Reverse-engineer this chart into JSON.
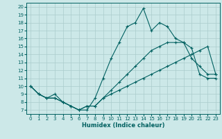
{
  "xlabel": "Humidex (Indice chaleur)",
  "bg_color": "#cce8e8",
  "line_color": "#006060",
  "grid_color": "#aacccc",
  "line1_x": [
    0,
    1,
    2,
    3,
    4,
    5,
    6,
    7,
    8,
    9,
    10,
    11,
    12,
    13,
    14,
    15,
    16,
    17,
    18,
    19,
    20,
    21,
    22,
    23
  ],
  "line1_y": [
    10,
    9,
    8.5,
    9,
    8,
    7.5,
    7,
    7,
    8.5,
    11,
    13.5,
    15.5,
    17.5,
    18.0,
    19.8,
    17.0,
    18.0,
    17.5,
    16.0,
    15.5,
    13.5,
    12.5,
    11.5,
    11.5
  ],
  "line2_x": [
    0,
    1,
    2,
    3,
    4,
    5,
    6,
    7,
    8,
    9,
    10,
    11,
    12,
    13,
    14,
    15,
    16,
    17,
    18,
    19,
    20,
    21,
    22,
    23
  ],
  "line2_y": [
    10,
    9,
    8.5,
    8.5,
    8,
    7.5,
    7,
    7.5,
    7.5,
    8.5,
    9.5,
    10.5,
    11.5,
    12.5,
    13.5,
    14.5,
    15.0,
    15.5,
    15.5,
    15.5,
    14.8,
    11.5,
    11.0,
    11.0
  ],
  "line3_x": [
    0,
    1,
    2,
    3,
    4,
    5,
    6,
    7,
    8,
    9,
    10,
    11,
    12,
    13,
    14,
    15,
    16,
    17,
    18,
    19,
    20,
    21,
    22,
    23
  ],
  "line3_y": [
    10,
    9,
    8.5,
    8.5,
    8,
    7.5,
    7,
    7.5,
    7.5,
    8.5,
    9.0,
    9.5,
    10.0,
    10.5,
    11.0,
    11.5,
    12.0,
    12.5,
    13.0,
    13.5,
    14.0,
    14.5,
    15.0,
    11.5
  ],
  "xlim": [
    -0.5,
    23.5
  ],
  "ylim": [
    6.5,
    20.5
  ],
  "yticks": [
    7,
    8,
    9,
    10,
    11,
    12,
    13,
    14,
    15,
    16,
    17,
    18,
    19,
    20
  ],
  "xticks": [
    0,
    1,
    2,
    3,
    4,
    5,
    6,
    7,
    8,
    9,
    10,
    11,
    12,
    13,
    14,
    15,
    16,
    17,
    18,
    19,
    20,
    21,
    22,
    23
  ]
}
